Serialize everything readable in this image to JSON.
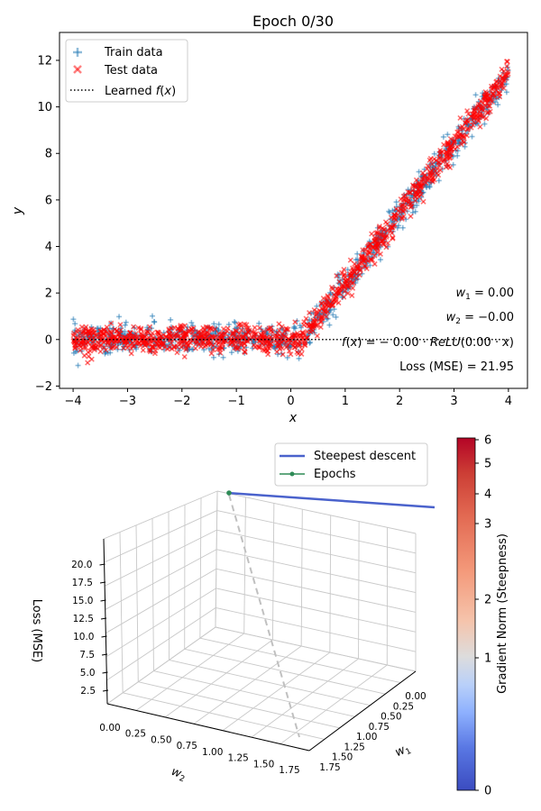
{
  "chart_data": [
    {
      "type": "scatter",
      "title": "Epoch 0/30",
      "xlabel": "x",
      "ylabel": "y",
      "xlim": [
        -4.25,
        4.35
      ],
      "ylim": [
        -2.1,
        13.2
      ],
      "xticks": [
        -4,
        -3,
        -2,
        -1,
        0,
        1,
        2,
        3,
        4
      ],
      "yticks": [
        -2,
        0,
        2,
        4,
        6,
        8,
        10,
        12
      ],
      "grid": false,
      "legend_position": "top-left",
      "series": [
        {
          "name": "Train data",
          "marker": "plus",
          "color": "#1f77b4",
          "trend": "y ≈ 0 for x < 0.2; y ≈ 3.0·(x − 0.2) for x ≥ 0.2",
          "x_range": [
            -4,
            4
          ],
          "noise_sd": 0.3
        },
        {
          "name": "Test data",
          "marker": "x",
          "color": "#ff0000",
          "trend": "y ≈ 0 for x < 0.2; y ≈ 3.0·(x − 0.2) for x ≥ 0.2",
          "x_range": [
            -4,
            4
          ],
          "noise_sd": 0.3
        },
        {
          "name": "Learned f(x)",
          "style": "dotted",
          "color": "#000000",
          "x": [
            -4,
            4
          ],
          "y": [
            0,
            0
          ]
        }
      ],
      "annotations": [
        "w_1 = 0.00",
        "w_2 = −0.00",
        "f(x) = −0.00 · ReLU(0.00 · x)",
        "Loss (MSE) = 21.95"
      ]
    },
    {
      "type": "surface-3d",
      "zlabel": "Loss (MSE)",
      "xlabel": "w_1",
      "ylabel": "w_2",
      "w1_ticks": [
        "0.00",
        "0.25",
        "0.50",
        "0.75",
        "1.00",
        "1.25",
        "1.50",
        "1.75"
      ],
      "w2_ticks": [
        "0.00",
        "0.25",
        "0.50",
        "0.75",
        "1.00",
        "1.25",
        "1.50",
        "1.75"
      ],
      "z_ticks": [
        "2.5",
        "5.0",
        "7.5",
        "10.0",
        "12.5",
        "15.0",
        "17.5",
        "20.0"
      ],
      "legend_position": "top-right",
      "series": [
        {
          "name": "Steepest descent",
          "color": "#4a62cc"
        },
        {
          "name": "Epochs",
          "color": "#2e8b57",
          "points": [
            {
              "w1": 0.0,
              "w2": 0.0,
              "loss": 21.95
            }
          ]
        }
      ],
      "colorbar": {
        "label": "Gradient Norm (Steepness)",
        "ticks": [
          "0",
          "1",
          "2",
          "3",
          "4",
          "5",
          "6"
        ],
        "cmap": "coolwarm"
      }
    }
  ]
}
